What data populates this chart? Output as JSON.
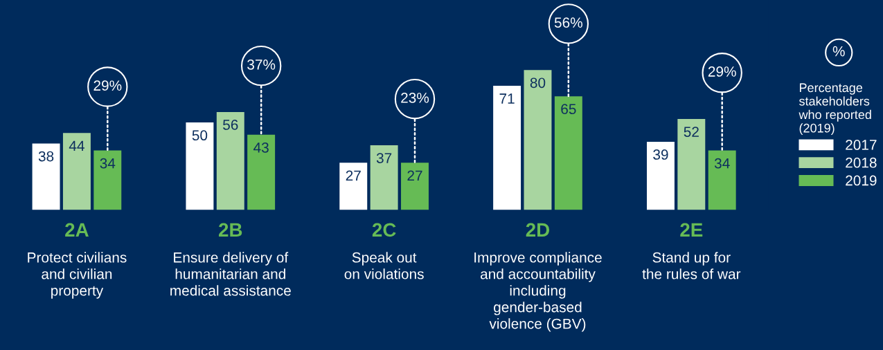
{
  "chart_data": {
    "type": "bar",
    "categories": [
      "2A\nProtect civilians\nand civilian\nproperty",
      "2B\nEnsure delivery of\nhumanitarian and\nmedical assistance",
      "2C\nSpeak out\non violations",
      "2D\nImprove compliance\nand accountability\nincluding\ngender-based\nviolence (GBV)",
      "2E\nStand up for\nthe rules of war"
    ],
    "series": [
      {
        "name": "2017",
        "color": "#ffffff",
        "values": [
          38,
          50,
          27,
          71,
          39
        ]
      },
      {
        "name": "2018",
        "color": "#a8d5a0",
        "values": [
          44,
          56,
          37,
          80,
          52
        ]
      },
      {
        "name": "2019",
        "color": "#66bb55",
        "values": [
          34,
          43,
          27,
          65,
          34
        ]
      }
    ],
    "data_labels": true,
    "legend": "right",
    "legend_title": "Percentage\nstakeholders\nwho reported\n(2019)",
    "annotations": [
      "29%",
      "37%",
      "23%",
      "56%",
      "29%",
      "%"
    ]
  }
}
